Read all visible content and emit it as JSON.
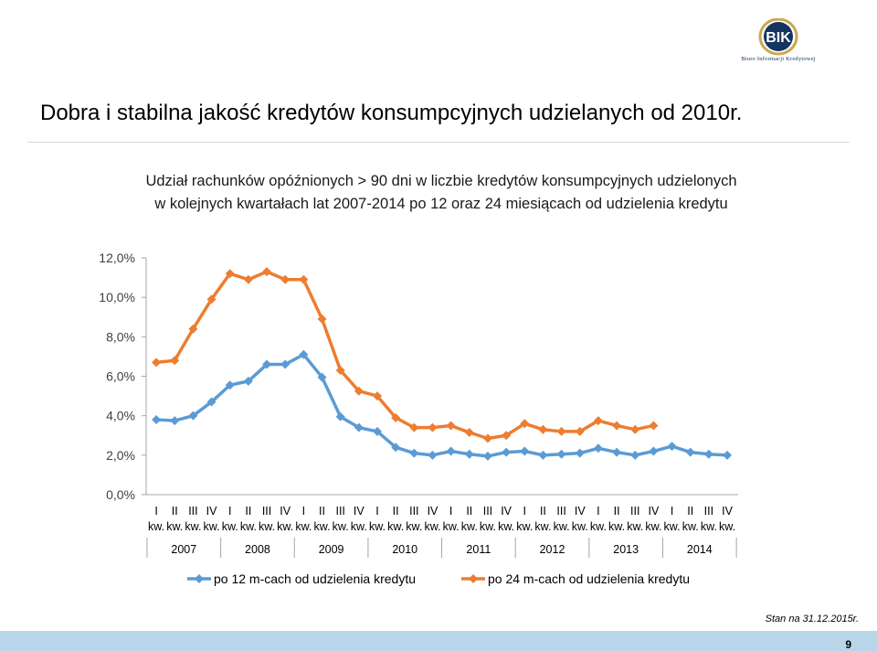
{
  "slide": {
    "title": "Dobra i stabilna jakość kredytów konsumpcyjnych udzielanych od 2010r.",
    "as_of": "Stan na 31.12.2015r.",
    "page_number": "9",
    "footer_color": "#b9d5ea"
  },
  "logo": {
    "mark": "BIK",
    "caption": "Biuro Informacji Kredytowej",
    "mark_color": "#14355f",
    "ring_color": "#c9a84e"
  },
  "chart_data": {
    "type": "line",
    "title_lines": [
      "Udział rachunków opóźnionych > 90 dni w liczbie kredytów konsumpcyjnych udzielonych",
      "w kolejnych kwartałach lat 2007-2014 po 12 oraz 24 miesiącach od udzielenia kredytu"
    ],
    "ylim": [
      0,
      12
    ],
    "y_ticks": [
      "0,0%",
      "2,0%",
      "4,0%",
      "6,0%",
      "8,0%",
      "10,0%",
      "12,0%"
    ],
    "years": [
      "2007",
      "2008",
      "2009",
      "2010",
      "2011",
      "2012",
      "2013",
      "2014"
    ],
    "quarters": [
      "I",
      "II",
      "III",
      "IV"
    ],
    "quarter_suffix": "kw.",
    "x_unit": "quarter",
    "series": [
      {
        "name": "po 12 m-cach od udzielenia kredytu",
        "color": "#5b9bd5",
        "values": [
          3.8,
          3.75,
          4.0,
          4.7,
          5.55,
          5.75,
          6.6,
          6.6,
          7.1,
          5.95,
          3.95,
          3.4,
          3.2,
          2.4,
          2.1,
          2.0,
          2.2,
          2.05,
          1.95,
          2.15,
          2.2,
          2.0,
          2.05,
          2.1,
          2.35,
          2.15,
          2.0,
          2.2,
          2.45,
          2.15,
          2.05,
          2.0
        ]
      },
      {
        "name": "po 24 m-cach od udzielenia kredytu",
        "color": "#ed7d31",
        "values": [
          6.7,
          6.8,
          8.4,
          9.9,
          11.2,
          10.9,
          11.3,
          10.9,
          10.9,
          8.9,
          6.3,
          5.25,
          5.0,
          3.9,
          3.4,
          3.4,
          3.5,
          3.15,
          2.85,
          3.0,
          3.6,
          3.3,
          3.2,
          3.2,
          3.75,
          3.5,
          3.3,
          3.5
        ]
      }
    ],
    "grid": false,
    "legend_position": "bottom"
  }
}
